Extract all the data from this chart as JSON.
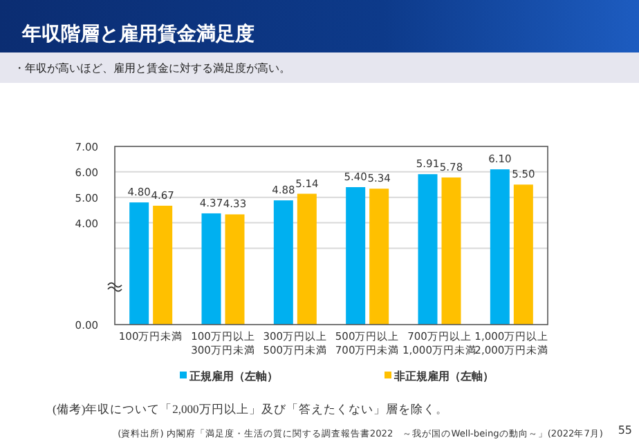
{
  "chart_data": {
    "type": "bar",
    "title": "年収階層と雇用賃金満足度",
    "subtitle": "・年収が高いほど、雇用と賃金に対する満足度が高い。",
    "categories": [
      "100万円未満",
      "100万円以上\n300万円未満",
      "300万円以上\n500万円未満",
      "500万円以上\n700万円未満",
      "700万円以上\n1,000万円未満",
      "1,000万円以上\n2,000万円未満"
    ],
    "series": [
      {
        "name": "正規雇用（左軸）",
        "color": "#00b0f0",
        "values": [
          4.8,
          4.37,
          4.88,
          5.4,
          5.91,
          6.1
        ],
        "value_labels": [
          "4.80",
          "4.37",
          "4.88",
          "5.40",
          "5.91",
          "6.10"
        ]
      },
      {
        "name": "非正規雇用（左軸）",
        "color": "#ffc000",
        "values": [
          4.67,
          4.33,
          5.14,
          5.34,
          5.78,
          5.5
        ],
        "value_labels": [
          "4.67",
          "4.33",
          "5.14",
          "5.34",
          "5.78",
          "5.50"
        ]
      }
    ],
    "ylim": [
      0,
      7
    ],
    "yticks": [
      {
        "value": 0,
        "label": "0.00"
      },
      {
        "value": 3,
        "label": null
      },
      {
        "value": 4,
        "label": "4.00"
      },
      {
        "value": 5,
        "label": "5.00"
      },
      {
        "value": 6,
        "label": "6.00"
      },
      {
        "value": 7,
        "label": "7.00"
      }
    ],
    "grid": "y",
    "legend": "bottom",
    "annotations": [
      "(備考)年収について「2,000万円以上」及び「答えたくない」層を除く。",
      "(資料出所) 内閣府「満足度・生活の質に関する調査報告書2022　～我が国のWell-beingの動向～」(2022年7月)",
      "55"
    ]
  }
}
